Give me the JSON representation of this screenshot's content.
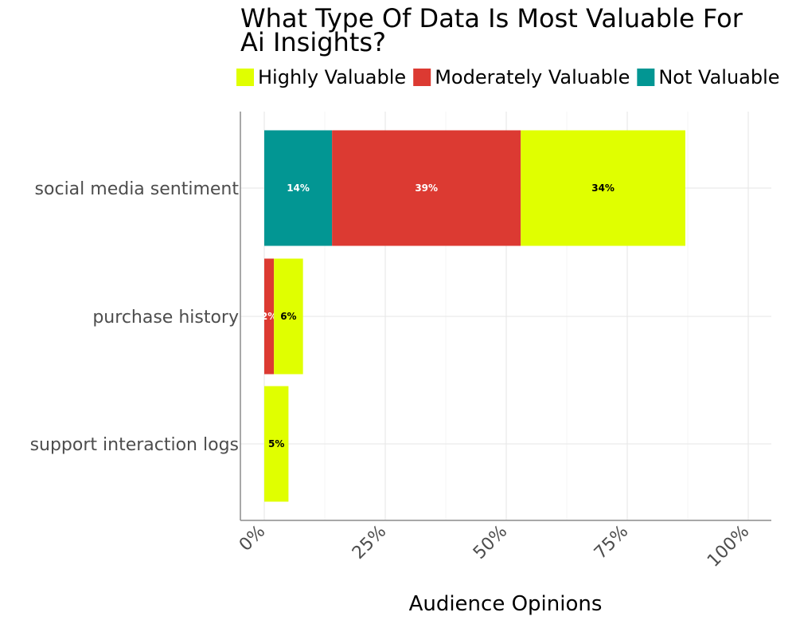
{
  "chart_data": {
    "type": "bar",
    "orientation": "horizontal",
    "stacked": true,
    "title_lines": [
      "What Type Of Data Is Most Valuable For",
      "Ai Insights?"
    ],
    "xlabel": "Audience Opinions",
    "ylabel": "",
    "xlim": [
      0,
      100
    ],
    "x_ticks": [
      0,
      25,
      50,
      75,
      100
    ],
    "x_tick_labels": [
      "0%",
      "25%",
      "50%",
      "75%",
      "100%"
    ],
    "grid": true,
    "legend_position": "top",
    "categories": [
      "social media sentiment",
      "purchase history",
      "support interaction logs"
    ],
    "series": [
      {
        "name": "Not Valuable",
        "color": "#029693",
        "values": [
          14,
          0,
          0
        ],
        "labels": [
          "14%",
          "",
          ""
        ],
        "label_color": "#ffffff"
      },
      {
        "name": "Moderately Valuable",
        "color": "#dc3a32",
        "values": [
          39,
          2,
          0
        ],
        "labels": [
          "39%",
          "2%",
          ""
        ],
        "label_color": "#ffffff"
      },
      {
        "name": "Highly Valuable",
        "color": "#e0ff00",
        "values": [
          34,
          6,
          5
        ],
        "labels": [
          "34%",
          "6%",
          "5%"
        ],
        "label_color": "#000000"
      }
    ],
    "legend_order": [
      "Highly Valuable",
      "Moderately Valuable",
      "Not Valuable"
    ]
  }
}
